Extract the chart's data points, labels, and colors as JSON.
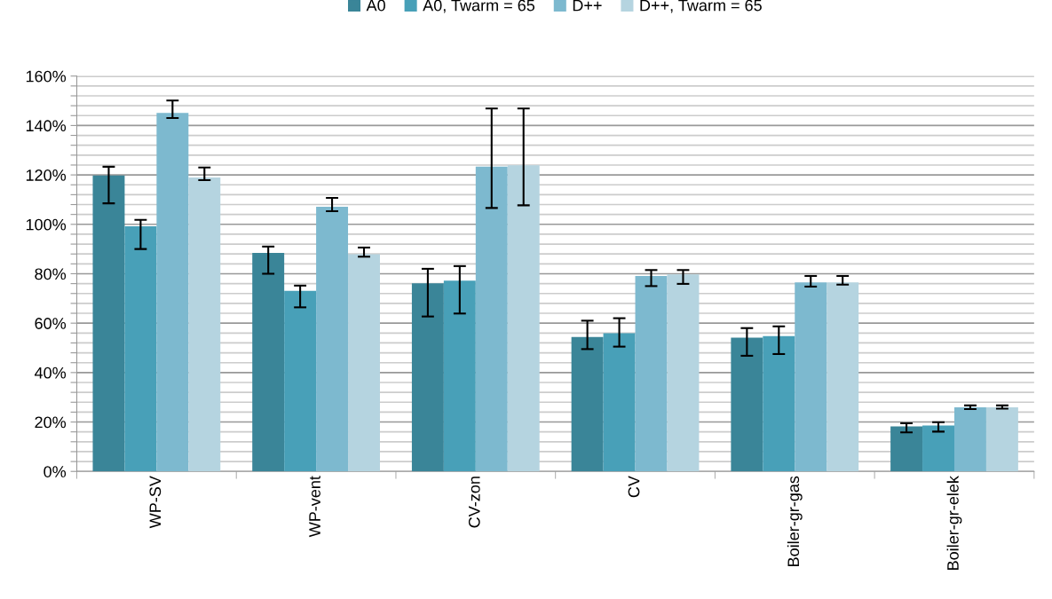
{
  "chart_data": {
    "type": "bar",
    "categories": [
      "WP-SV",
      "WP-vent",
      "CV-zon",
      "CV",
      "Boiler-gr-gas",
      "Boiler-gr-elek"
    ],
    "series": [
      {
        "name": "A0",
        "color": "#3a8598",
        "values": [
          119.8,
          88.4,
          76.1,
          54.4,
          54.1,
          18.2
        ],
        "errors": [
          [
            108.5,
            123.3
          ],
          [
            80,
            91
          ],
          [
            62.7,
            82
          ],
          [
            49.5,
            61
          ],
          [
            46.8,
            58
          ],
          [
            15.8,
            19.5
          ]
        ]
      },
      {
        "name": "A0, Twarm = 65",
        "color": "#48a0b8",
        "values": [
          99.2,
          73.1,
          77.2,
          55.9,
          54.8,
          18.6
        ],
        "errors": [
          [
            90,
            101.8
          ],
          [
            66.4,
            75.2
          ],
          [
            63.9,
            83.1
          ],
          [
            50.5,
            62
          ],
          [
            47.5,
            58.7
          ],
          [
            16.1,
            19.9
          ]
        ]
      },
      {
        "name": "D++",
        "color": "#7db9cf",
        "values": [
          145.1,
          107.1,
          123.4,
          79.1,
          76.5,
          25.9
        ],
        "errors": [
          [
            143,
            150.1
          ],
          [
            105.3,
            110.7
          ],
          [
            106.6,
            146.9
          ],
          [
            75,
            81.5
          ],
          [
            74.8,
            79.1
          ],
          [
            25.2,
            26.7
          ]
        ]
      },
      {
        "name": "D++, Twarm = 65",
        "color": "#b5d4e0",
        "values": [
          119,
          87.9,
          123.9,
          79.7,
          76.5,
          25.9
        ],
        "errors": [
          [
            117.9,
            123
          ],
          [
            86.9,
            90.6
          ],
          [
            107.7,
            146.9
          ],
          [
            75.9,
            81.5
          ],
          [
            75.6,
            79.1
          ],
          [
            25.4,
            26.7
          ]
        ]
      }
    ],
    "ylim": [
      0,
      160
    ],
    "yticks": [
      {
        "value": 0,
        "label": "0%"
      },
      {
        "value": 4,
        "label": null
      },
      {
        "value": 8,
        "label": null
      },
      {
        "value": 12,
        "label": null
      },
      {
        "value": 16,
        "label": null
      },
      {
        "value": 20,
        "label": "20%"
      },
      {
        "value": 24,
        "label": null
      },
      {
        "value": 28,
        "label": null
      },
      {
        "value": 32,
        "label": null
      },
      {
        "value": 36,
        "label": null
      },
      {
        "value": 40,
        "label": "40%"
      },
      {
        "value": 44,
        "label": null
      },
      {
        "value": 48,
        "label": null
      },
      {
        "value": 52,
        "label": null
      },
      {
        "value": 56,
        "label": null
      },
      {
        "value": 60,
        "label": "60%"
      },
      {
        "value": 64,
        "label": null
      },
      {
        "value": 68,
        "label": null
      },
      {
        "value": 72,
        "label": null
      },
      {
        "value": 76,
        "label": null
      },
      {
        "value": 80,
        "label": "80%"
      },
      {
        "value": 84,
        "label": null
      },
      {
        "value": 88,
        "label": null
      },
      {
        "value": 92,
        "label": null
      },
      {
        "value": 96,
        "label": null
      },
      {
        "value": 100,
        "label": "100%"
      },
      {
        "value": 104,
        "label": null
      },
      {
        "value": 108,
        "label": null
      },
      {
        "value": 112,
        "label": null
      },
      {
        "value": 116,
        "label": null
      },
      {
        "value": 120,
        "label": "120%"
      },
      {
        "value": 124,
        "label": null
      },
      {
        "value": 128,
        "label": null
      },
      {
        "value": 132,
        "label": null
      },
      {
        "value": 136,
        "label": null
      },
      {
        "value": 140,
        "label": "140%"
      },
      {
        "value": 144,
        "label": null
      },
      {
        "value": 148,
        "label": null
      },
      {
        "value": 152,
        "label": null
      },
      {
        "value": 156,
        "label": null
      },
      {
        "value": 160,
        "label": "160%"
      }
    ],
    "grid": "y",
    "legend": "top"
  }
}
